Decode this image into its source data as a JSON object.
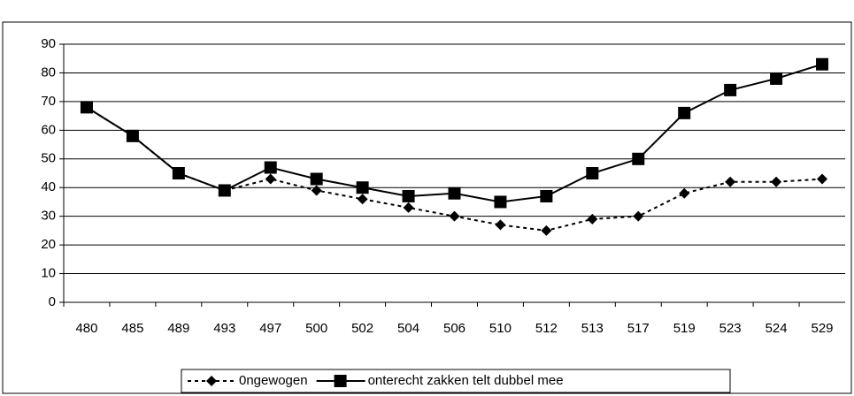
{
  "chart_data": {
    "type": "line",
    "categories": [
      "480",
      "485",
      "489",
      "493",
      "497",
      "500",
      "502",
      "504",
      "506",
      "510",
      "512",
      "513",
      "517",
      "519",
      "523",
      "524",
      "529"
    ],
    "series": [
      {
        "name": "0ngewogen",
        "color": "#000000",
        "dash": true,
        "marker": "diamond",
        "values": [
          68,
          58,
          45,
          39,
          43,
          39,
          36,
          33,
          30,
          27,
          25,
          29,
          30,
          38,
          42,
          42,
          43
        ]
      },
      {
        "name": "onterecht zakken telt dubbel mee",
        "color": "#000000",
        "dash": false,
        "marker": "square",
        "values": [
          68,
          58,
          45,
          39,
          47,
          43,
          40,
          37,
          38,
          35,
          37,
          45,
          50,
          66,
          74,
          78,
          83
        ]
      }
    ],
    "ylim": [
      0,
      90
    ],
    "yticks": [
      0,
      10,
      20,
      30,
      40,
      50,
      60,
      70,
      80,
      90
    ],
    "grid": true,
    "legend": "bottom"
  }
}
